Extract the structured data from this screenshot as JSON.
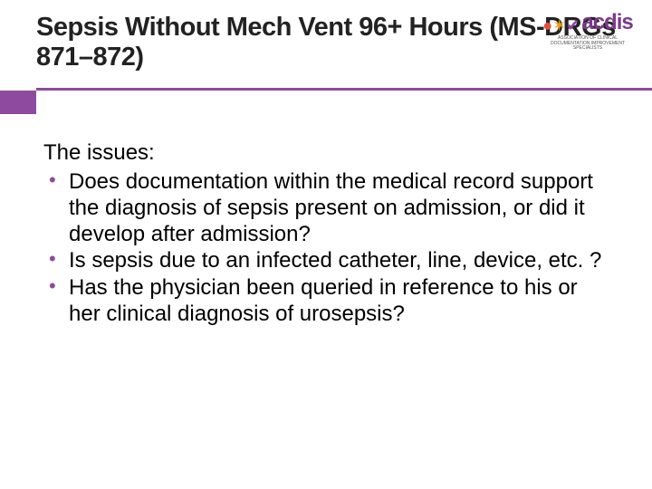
{
  "slide": {
    "title": "Sepsis Without Mech Vent 96+ Hours (MS-DRGs 871–872)",
    "intro": "The issues:",
    "bullets": [
      "Does documentation within the medical record support the diagnosis of sepsis present on admission, or did it develop after admission?",
      "Is sepsis due to an infected catheter, line, device, etc. ?",
      "Has the physician been queried in reference to his or her clinical diagnosis of urosepsis?"
    ],
    "logo": {
      "text": "acdis",
      "subtitle": "ASSOCIATION OF CLINICAL DOCUMENTATION IMPROVEMENT SPECIALISTS"
    },
    "colors": {
      "accent": "#8e4a9e",
      "text": "#000000",
      "background": "#ffffff"
    }
  }
}
